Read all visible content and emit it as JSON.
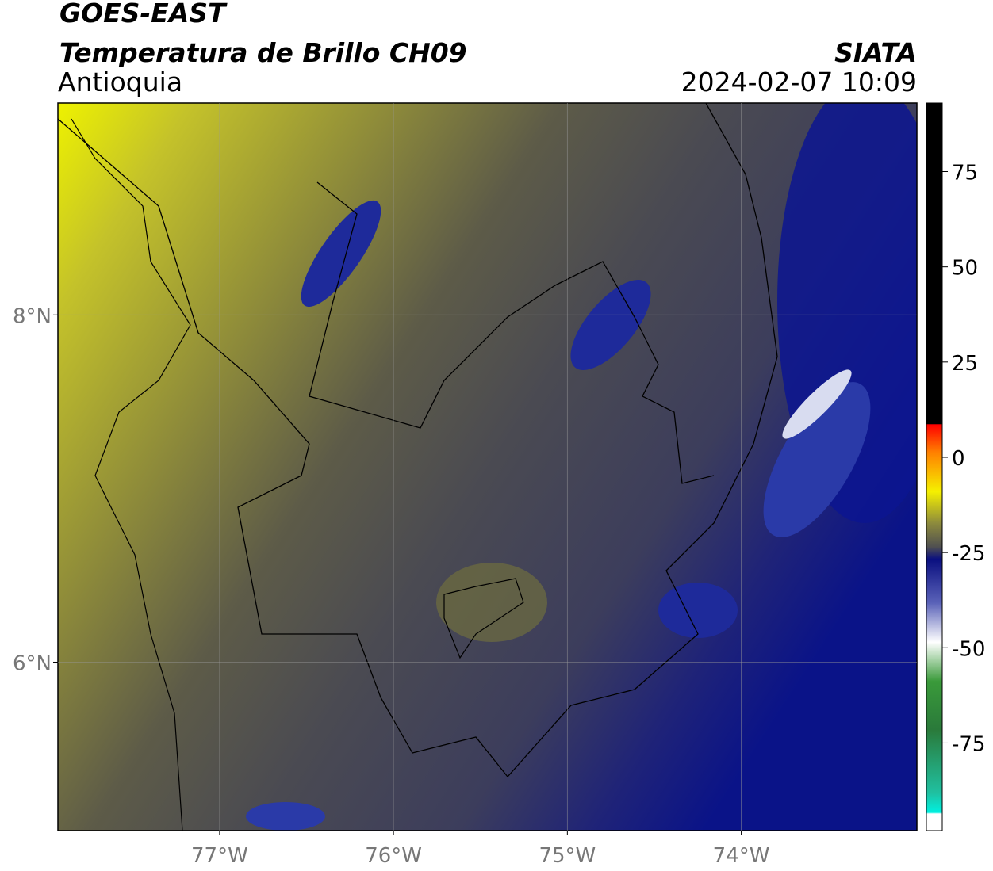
{
  "header": {
    "source": "GOES-EAST",
    "product": "Temperatura de Brillo CH09",
    "region": "Antioquia",
    "agency": "SIATA",
    "datetime": "2024-02-07 10:09"
  },
  "map": {
    "xlim": [
      -77.93,
      -72.99
    ],
    "ylim": [
      5.03,
      9.22
    ],
    "grid": true,
    "xticks": [
      {
        "value": -77,
        "label": "77°W"
      },
      {
        "value": -76,
        "label": "76°W"
      },
      {
        "value": -75,
        "label": "75°W"
      },
      {
        "value": -74,
        "label": "74°W"
      }
    ],
    "yticks": [
      {
        "value": 8,
        "label": "8°N"
      },
      {
        "value": 6,
        "label": "6°N"
      }
    ]
  },
  "colorbar": {
    "lim": [
      -98,
      93
    ],
    "ticks": [
      75,
      50,
      25,
      0,
      -25,
      -50,
      -75
    ]
  }
}
